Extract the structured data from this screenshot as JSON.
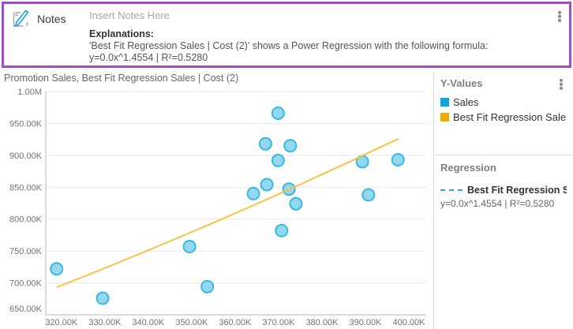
{
  "notes_panel": {
    "title": "Notes",
    "placeholder": "Insert Notes Here",
    "explanations_label": "Explanations:",
    "explanation_line1": "'Best Fit Regression Sales | Cost (2)' shows a Power Regression with the following formula:",
    "explanation_line2": "y=0.0x^1.4554 | R²=0.5280",
    "border_color": "#a04ccd",
    "menu_icon": "vertical-ellipsis"
  },
  "chart": {
    "title": "Promotion Sales, Best Fit Regression Sales | Cost (2)"
  },
  "chart_data": {
    "type": "scatter",
    "title": "Promotion Sales, Best Fit Regression Sales | Cost (2)",
    "grid": true,
    "x_range": [
      316400,
      404000
    ],
    "y_range": [
      650000,
      1000000
    ],
    "x_ticks": [
      {
        "label": "320.00K",
        "value": 320000
      },
      {
        "label": "330.00K",
        "value": 330000
      },
      {
        "label": "340.00K",
        "value": 340000
      },
      {
        "label": "350.00K",
        "value": 350000
      },
      {
        "label": "360.00K",
        "value": 360000
      },
      {
        "label": "370.00K",
        "value": 370000
      },
      {
        "label": "380.00K",
        "value": 380000
      },
      {
        "label": "390.00K",
        "value": 390000
      },
      {
        "label": "400.00K",
        "value": 400000
      }
    ],
    "y_ticks": [
      {
        "label": "650.00K",
        "value": 650000
      },
      {
        "label": "700.00K",
        "value": 700000
      },
      {
        "label": "750.00K",
        "value": 750000
      },
      {
        "label": "800.00K",
        "value": 800000
      },
      {
        "label": "850.00K",
        "value": 850000
      },
      {
        "label": "900.00K",
        "value": 900000
      },
      {
        "label": "950.00K",
        "value": 950000
      },
      {
        "label": "1.00M",
        "value": 1000000
      }
    ],
    "series": [
      {
        "name": "Sales",
        "kind": "scatter",
        "color": "#38b8e0",
        "fill": "#92d9f0",
        "points": [
          [
            318900,
            722000
          ],
          [
            329500,
            676000
          ],
          [
            349500,
            757000
          ],
          [
            353600,
            694000
          ],
          [
            364200,
            840000
          ],
          [
            367000,
            918000
          ],
          [
            367300,
            854000
          ],
          [
            369900,
            966000
          ],
          [
            369900,
            892000
          ],
          [
            370700,
            782000
          ],
          [
            372400,
            847000
          ],
          [
            372700,
            915000
          ],
          [
            374000,
            824000
          ],
          [
            389300,
            890000
          ],
          [
            390700,
            838000
          ],
          [
            397500,
            893000
          ]
        ]
      },
      {
        "name": "Best Fit Regression Sales | Cost (2)",
        "kind": "line",
        "color": "#f6c445",
        "formula": "y=0.0x^1.4554 | R²=0.5280",
        "points": [
          [
            318900,
            693000
          ],
          [
            358300,
            804000
          ],
          [
            397600,
            926000
          ]
        ]
      }
    ]
  },
  "legend_panel": {
    "title": "Y-Values",
    "menu_icon": "vertical-ellipsis",
    "items": [
      {
        "label": "Sales",
        "color": "#0da5dc"
      },
      {
        "label": "Best Fit Regression Sales...",
        "color": "#f0ab00"
      }
    ]
  },
  "regression_panel": {
    "title": "Regression",
    "items": [
      {
        "label": "Best Fit Regression Sal...",
        "formula": "y=0.0x^1.4554 | R²=0.5280",
        "line_color": "#35a1c9",
        "line_style": "dashed"
      }
    ]
  }
}
